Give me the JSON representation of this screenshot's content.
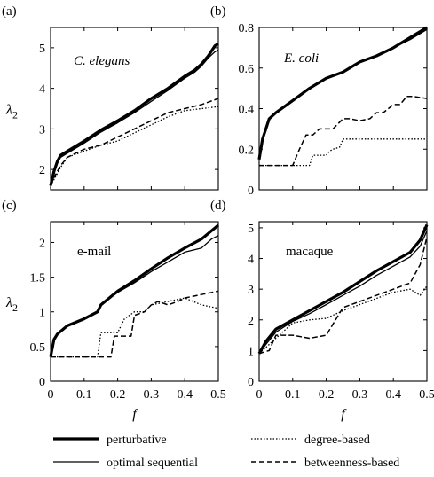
{
  "chart_data": [
    {
      "type": "line",
      "panel_label": "(a)",
      "name": "C. elegans",
      "name_italic": true,
      "xlabel": "",
      "ylabel": "λ2",
      "xlim": [
        0,
        0.5
      ],
      "ylim": [
        1.5,
        5.5
      ],
      "xticks": [],
      "yticks": [
        "2",
        "3",
        "4",
        "5"
      ],
      "grid": false,
      "legend": "bottom",
      "series": [
        {
          "name": "perturbative",
          "x": [
            0,
            0.01,
            0.02,
            0.03,
            0.05,
            0.1,
            0.15,
            0.2,
            0.25,
            0.3,
            0.35,
            0.4,
            0.43,
            0.45,
            0.47,
            0.49,
            0.5
          ],
          "y": [
            1.6,
            1.95,
            2.2,
            2.35,
            2.45,
            2.7,
            2.97,
            3.2,
            3.45,
            3.75,
            4.0,
            4.3,
            4.45,
            4.6,
            4.8,
            5.05,
            5.1
          ]
        },
        {
          "name": "optimal sequential",
          "x": [
            0,
            0.01,
            0.02,
            0.03,
            0.05,
            0.1,
            0.15,
            0.2,
            0.25,
            0.3,
            0.35,
            0.4,
            0.43,
            0.45,
            0.47,
            0.49,
            0.5
          ],
          "y": [
            1.6,
            1.9,
            2.15,
            2.3,
            2.4,
            2.65,
            2.92,
            3.15,
            3.4,
            3.68,
            3.95,
            4.25,
            4.4,
            4.55,
            4.75,
            4.9,
            4.95
          ]
        },
        {
          "name": "degree-based",
          "x": [
            0,
            0.01,
            0.03,
            0.05,
            0.1,
            0.15,
            0.2,
            0.25,
            0.3,
            0.35,
            0.4,
            0.45,
            0.5
          ],
          "y": [
            1.6,
            1.75,
            2.05,
            2.3,
            2.45,
            2.6,
            2.7,
            2.9,
            3.1,
            3.3,
            3.45,
            3.5,
            3.55
          ]
        },
        {
          "name": "betweenness-based",
          "x": [
            0,
            0.01,
            0.03,
            0.05,
            0.1,
            0.15,
            0.2,
            0.25,
            0.3,
            0.35,
            0.4,
            0.45,
            0.5
          ],
          "y": [
            1.6,
            1.8,
            2.1,
            2.3,
            2.5,
            2.6,
            2.8,
            3.0,
            3.2,
            3.4,
            3.5,
            3.6,
            3.75
          ]
        }
      ]
    },
    {
      "type": "line",
      "panel_label": "(b)",
      "name": "E. coli",
      "name_italic": true,
      "xlabel": "",
      "ylabel": "",
      "xlim": [
        0,
        0.5
      ],
      "ylim": [
        0,
        0.8
      ],
      "xticks": [],
      "yticks": [
        "0",
        "0.2",
        "0.4",
        "0.6",
        "0.8"
      ],
      "grid": false,
      "legend": "bottom",
      "series": [
        {
          "name": "perturbative",
          "x": [
            0,
            0.01,
            0.02,
            0.03,
            0.05,
            0.1,
            0.15,
            0.2,
            0.25,
            0.3,
            0.35,
            0.4,
            0.45,
            0.5
          ],
          "y": [
            0.15,
            0.25,
            0.3,
            0.35,
            0.38,
            0.44,
            0.5,
            0.55,
            0.58,
            0.63,
            0.66,
            0.7,
            0.75,
            0.8
          ]
        },
        {
          "name": "optimal sequential",
          "x": [
            0,
            0.01,
            0.02,
            0.03,
            0.05,
            0.1,
            0.15,
            0.2,
            0.25,
            0.3,
            0.35,
            0.4,
            0.45,
            0.5
          ],
          "y": [
            0.15,
            0.25,
            0.3,
            0.35,
            0.38,
            0.44,
            0.5,
            0.55,
            0.58,
            0.63,
            0.66,
            0.7,
            0.74,
            0.79
          ]
        },
        {
          "name": "degree-based",
          "x": [
            0,
            0.15,
            0.16,
            0.2,
            0.21,
            0.22,
            0.24,
            0.25,
            0.5
          ],
          "y": [
            0.12,
            0.12,
            0.17,
            0.17,
            0.19,
            0.2,
            0.21,
            0.25,
            0.25
          ]
        },
        {
          "name": "betweenness-based",
          "x": [
            0,
            0.1,
            0.12,
            0.14,
            0.16,
            0.18,
            0.22,
            0.25,
            0.27,
            0.3,
            0.33,
            0.35,
            0.37,
            0.4,
            0.42,
            0.44,
            0.46,
            0.5
          ],
          "y": [
            0.12,
            0.12,
            0.2,
            0.27,
            0.27,
            0.3,
            0.3,
            0.35,
            0.35,
            0.34,
            0.35,
            0.38,
            0.38,
            0.42,
            0.42,
            0.46,
            0.46,
            0.45
          ]
        }
      ]
    },
    {
      "type": "line",
      "panel_label": "(c)",
      "name": "e-mail",
      "name_italic": false,
      "xlabel": "f",
      "ylabel": "λ2",
      "xlim": [
        0,
        0.5
      ],
      "ylim": [
        0,
        2.3
      ],
      "xticks": [
        "0",
        "0.1",
        "0.2",
        "0.3",
        "0.4",
        "0.5"
      ],
      "yticks": [
        "0",
        "0.5",
        "1",
        "1.5",
        "2"
      ],
      "grid": false,
      "legend": "bottom",
      "series": [
        {
          "name": "perturbative",
          "x": [
            0,
            0.01,
            0.02,
            0.05,
            0.1,
            0.14,
            0.15,
            0.2,
            0.25,
            0.3,
            0.35,
            0.4,
            0.45,
            0.5
          ],
          "y": [
            0.35,
            0.6,
            0.68,
            0.8,
            0.9,
            1.0,
            1.1,
            1.3,
            1.45,
            1.62,
            1.78,
            1.92,
            2.05,
            2.25
          ]
        },
        {
          "name": "optimal sequential",
          "x": [
            0,
            0.01,
            0.02,
            0.05,
            0.1,
            0.14,
            0.15,
            0.2,
            0.25,
            0.3,
            0.35,
            0.4,
            0.45,
            0.48,
            0.5
          ],
          "y": [
            0.35,
            0.6,
            0.68,
            0.8,
            0.9,
            1.0,
            1.1,
            1.28,
            1.42,
            1.58,
            1.72,
            1.86,
            1.92,
            2.05,
            2.1
          ]
        },
        {
          "name": "degree-based",
          "x": [
            0,
            0.14,
            0.15,
            0.2,
            0.22,
            0.25,
            0.28,
            0.3,
            0.35,
            0.4,
            0.45,
            0.5
          ],
          "y": [
            0.35,
            0.35,
            0.7,
            0.7,
            0.9,
            1.0,
            1.0,
            1.1,
            1.15,
            1.2,
            1.1,
            1.05
          ]
        },
        {
          "name": "betweenness-based",
          "x": [
            0,
            0.18,
            0.19,
            0.24,
            0.25,
            0.28,
            0.3,
            0.32,
            0.35,
            0.38,
            0.4,
            0.45,
            0.5
          ],
          "y": [
            0.35,
            0.35,
            0.65,
            0.65,
            0.95,
            1.0,
            1.1,
            1.15,
            1.1,
            1.15,
            1.2,
            1.25,
            1.3
          ]
        }
      ]
    },
    {
      "type": "line",
      "panel_label": "(d)",
      "name": "macaque",
      "name_italic": false,
      "xlabel": "f",
      "ylabel": "",
      "xlim": [
        0,
        0.5
      ],
      "ylim": [
        0,
        5.2
      ],
      "xticks": [
        "0",
        "0.1",
        "0.2",
        "0.3",
        "0.4",
        "0.5"
      ],
      "yticks": [
        "0",
        "1",
        "2",
        "3",
        "4",
        "5"
      ],
      "grid": false,
      "legend": "bottom",
      "series": [
        {
          "name": "perturbative",
          "x": [
            0,
            0.02,
            0.05,
            0.1,
            0.15,
            0.2,
            0.25,
            0.3,
            0.35,
            0.4,
            0.45,
            0.48,
            0.5
          ],
          "y": [
            0.9,
            1.3,
            1.7,
            2.0,
            2.3,
            2.6,
            2.9,
            3.25,
            3.6,
            3.9,
            4.2,
            4.6,
            5.1
          ]
        },
        {
          "name": "optimal sequential",
          "x": [
            0,
            0.02,
            0.05,
            0.1,
            0.15,
            0.2,
            0.25,
            0.3,
            0.35,
            0.4,
            0.45,
            0.48,
            0.5
          ],
          "y": [
            0.9,
            1.2,
            1.6,
            1.95,
            2.2,
            2.5,
            2.8,
            3.1,
            3.45,
            3.75,
            4.05,
            4.4,
            4.9
          ]
        },
        {
          "name": "degree-based",
          "x": [
            0,
            0.02,
            0.05,
            0.1,
            0.15,
            0.2,
            0.25,
            0.3,
            0.35,
            0.4,
            0.45,
            0.48,
            0.5
          ],
          "y": [
            0.9,
            1.1,
            1.4,
            1.9,
            2.0,
            2.05,
            2.3,
            2.5,
            2.7,
            2.9,
            3.0,
            2.8,
            3.1
          ]
        },
        {
          "name": "betweenness-based",
          "x": [
            0,
            0.03,
            0.05,
            0.1,
            0.15,
            0.2,
            0.25,
            0.3,
            0.35,
            0.4,
            0.45,
            0.48,
            0.5
          ],
          "y": [
            0.9,
            1.0,
            1.5,
            1.5,
            1.4,
            1.5,
            2.4,
            2.6,
            2.8,
            3.0,
            3.2,
            3.8,
            4.7
          ]
        }
      ]
    }
  ],
  "legend": [
    {
      "label": "perturbative",
      "style": "thick-solid"
    },
    {
      "label": "optimal sequential",
      "style": "thin-solid"
    },
    {
      "label": "degree-based",
      "style": "dotted"
    },
    {
      "label": "betweenness-based",
      "style": "dashed"
    }
  ]
}
